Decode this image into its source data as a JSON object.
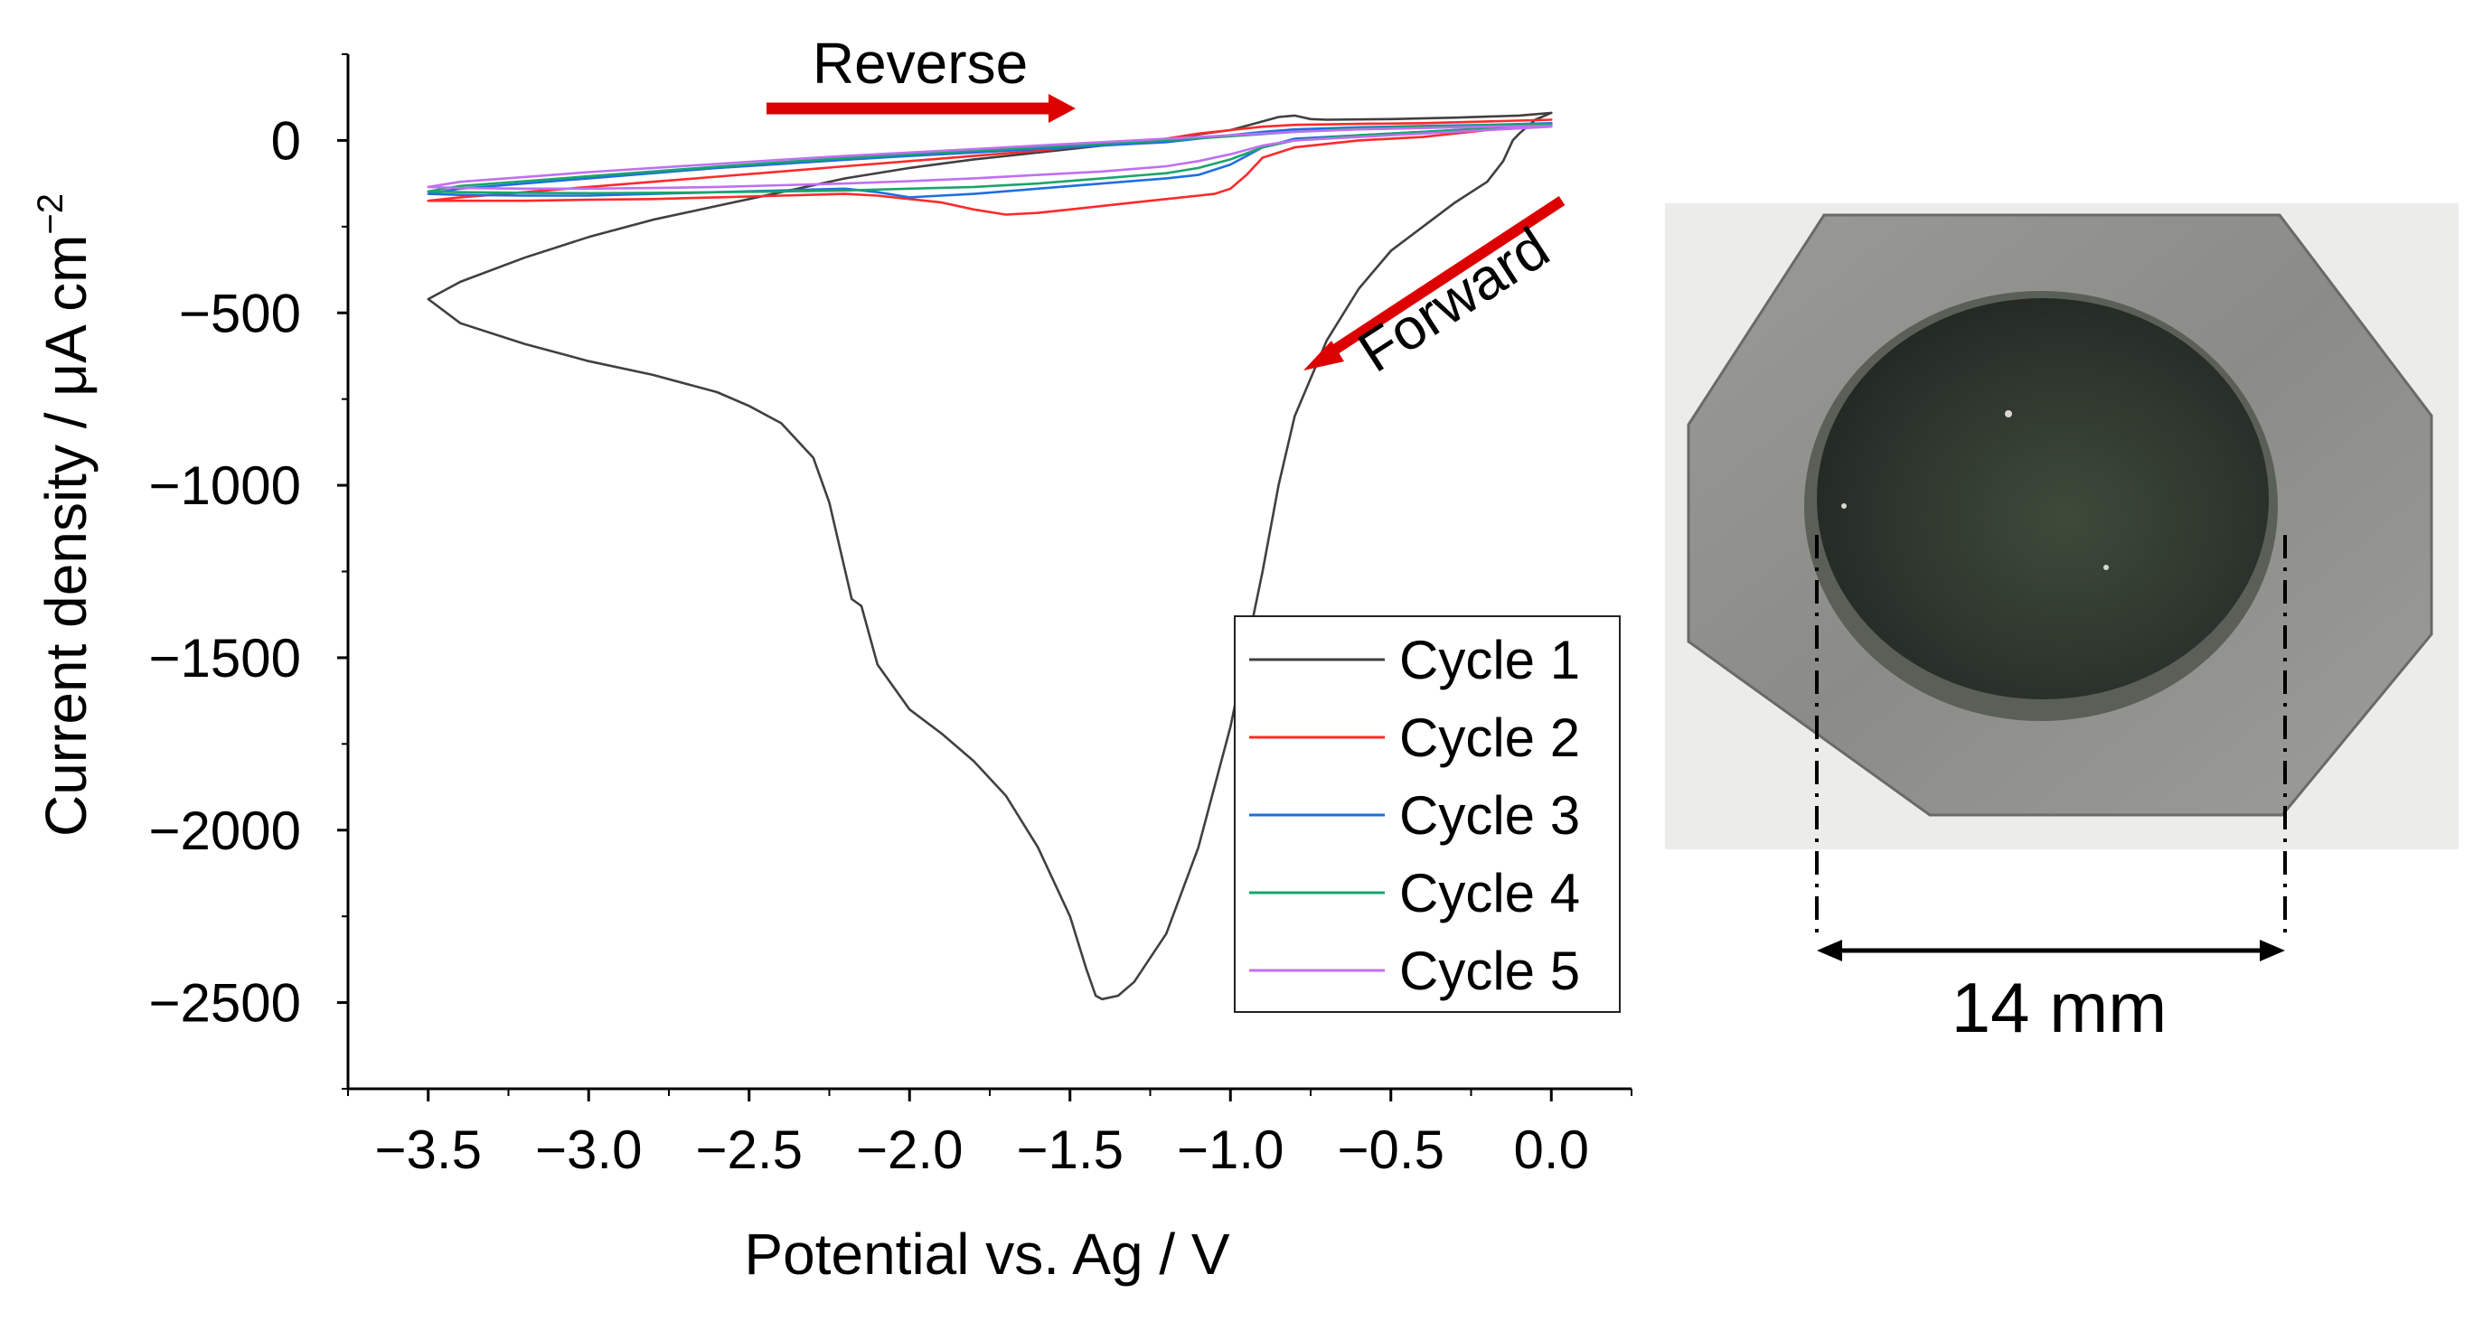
{
  "colors": {
    "cycle1": "#404040",
    "cycle2": "#ff2a2a",
    "cycle3": "#1f6fe0",
    "cycle4": "#1aa56a",
    "cycle5": "#c070f0",
    "arrow": "#dd0000",
    "axis": "#000000"
  },
  "chart_data": {
    "type": "line",
    "title": "",
    "xlabel": "Potential vs. Ag / V",
    "ylabel": "Current density / μA cm",
    "ylabel_sup": "−2",
    "xlim": [
      -3.75,
      0.25
    ],
    "ylim": [
      -2750,
      250
    ],
    "xticks": [
      -3.5,
      -3.0,
      -2.5,
      -2.0,
      -1.5,
      -1.0,
      -0.5,
      0.0
    ],
    "xtick_labels": [
      "−3.5",
      "−3.0",
      "−2.5",
      "−2.0",
      "−1.5",
      "−1.0",
      "−0.5",
      "0.0"
    ],
    "yticks": [
      0,
      -500,
      -1000,
      -1500,
      -2000,
      -2500
    ],
    "ytick_labels": [
      "0",
      "−500",
      "−1000",
      "−1500",
      "−2000",
      "−2500"
    ],
    "legend_position": "bottom-right",
    "annotations": {
      "reverse": "Reverse",
      "forward": "Forward"
    },
    "series": [
      {
        "name": "Cycle 1",
        "color_key": "cycle1",
        "x": [
          0.0,
          -0.05,
          -0.1,
          -0.12,
          -0.15,
          -0.2,
          -0.3,
          -0.4,
          -0.5,
          -0.6,
          -0.7,
          -0.8,
          -0.85,
          -0.9,
          -1.0,
          -1.1,
          -1.2,
          -1.3,
          -1.35,
          -1.4,
          -1.42,
          -1.45,
          -1.5,
          -1.6,
          -1.7,
          -1.8,
          -1.9,
          -2.0,
          -2.1,
          -2.15,
          -2.18,
          -2.2,
          -2.25,
          -2.3,
          -2.4,
          -2.5,
          -2.6,
          -2.8,
          -3.0,
          -3.2,
          -3.4,
          -3.5,
          -3.4,
          -3.2,
          -3.0,
          -2.8,
          -2.6,
          -2.4,
          -2.2,
          -2.0,
          -1.8,
          -1.6,
          -1.4,
          -1.2,
          -1.0,
          -0.9,
          -0.85,
          -0.8,
          -0.75,
          -0.7,
          -0.5,
          -0.3,
          -0.1,
          0.0
        ],
        "y": [
          80,
          60,
          20,
          0,
          -60,
          -120,
          -180,
          -250,
          -320,
          -430,
          -580,
          -800,
          -1000,
          -1250,
          -1700,
          -2050,
          -2300,
          -2440,
          -2480,
          -2490,
          -2480,
          -2400,
          -2250,
          -2050,
          -1900,
          -1800,
          -1720,
          -1650,
          -1520,
          -1350,
          -1330,
          -1250,
          -1050,
          -920,
          -820,
          -770,
          -730,
          -680,
          -640,
          -590,
          -530,
          -460,
          -410,
          -340,
          -280,
          -230,
          -190,
          -150,
          -110,
          -80,
          -55,
          -35,
          -15,
          5,
          30,
          55,
          68,
          72,
          62,
          60,
          62,
          66,
          72,
          80
        ]
      },
      {
        "name": "Cycle 2",
        "color_key": "cycle2",
        "x": [
          0.0,
          -0.2,
          -0.4,
          -0.6,
          -0.8,
          -0.9,
          -0.95,
          -1.0,
          -1.05,
          -1.1,
          -1.2,
          -1.3,
          -1.4,
          -1.5,
          -1.6,
          -1.7,
          -1.8,
          -1.9,
          -2.0,
          -2.1,
          -2.2,
          -2.4,
          -2.6,
          -2.8,
          -3.0,
          -3.2,
          -3.4,
          -3.5,
          -3.4,
          -3.2,
          -3.0,
          -2.8,
          -2.6,
          -2.4,
          -2.2,
          -2.0,
          -1.8,
          -1.6,
          -1.4,
          -1.2,
          -1.1,
          -1.0,
          -0.9,
          -0.8,
          -0.6,
          -0.4,
          -0.2,
          0.0
        ],
        "y": [
          50,
          30,
          10,
          0,
          -20,
          -50,
          -100,
          -140,
          -155,
          -160,
          -170,
          -180,
          -190,
          -200,
          -210,
          -215,
          -200,
          -180,
          -170,
          -160,
          -155,
          -160,
          -165,
          -170,
          -172,
          -175,
          -175,
          -175,
          -165,
          -150,
          -135,
          -120,
          -105,
          -90,
          -75,
          -60,
          -45,
          -30,
          -10,
          5,
          20,
          30,
          40,
          45,
          48,
          50,
          55,
          60
        ]
      },
      {
        "name": "Cycle 3",
        "color_key": "cycle3",
        "x": [
          0.0,
          -0.2,
          -0.4,
          -0.6,
          -0.8,
          -0.9,
          -1.0,
          -1.1,
          -1.2,
          -1.4,
          -1.6,
          -1.8,
          -2.0,
          -2.1,
          -2.2,
          -2.4,
          -2.6,
          -2.8,
          -3.0,
          -3.2,
          -3.4,
          -3.5,
          -3.4,
          -3.2,
          -3.0,
          -2.8,
          -2.6,
          -2.4,
          -2.2,
          -2.0,
          -1.8,
          -1.6,
          -1.4,
          -1.2,
          -1.1,
          -1.0,
          -0.9,
          -0.8,
          -0.6,
          -0.4,
          -0.2,
          0.0
        ],
        "y": [
          45,
          35,
          25,
          15,
          5,
          -20,
          -70,
          -100,
          -110,
          -125,
          -140,
          -155,
          -165,
          -150,
          -140,
          -145,
          -150,
          -155,
          -160,
          -160,
          -158,
          -155,
          -140,
          -125,
          -110,
          -95,
          -80,
          -68,
          -56,
          -45,
          -35,
          -25,
          -15,
          -5,
          5,
          15,
          25,
          32,
          38,
          42,
          45,
          50
        ]
      },
      {
        "name": "Cycle 4",
        "color_key": "cycle4",
        "x": [
          0.0,
          -0.2,
          -0.4,
          -0.6,
          -0.8,
          -0.9,
          -1.0,
          -1.1,
          -1.2,
          -1.4,
          -1.6,
          -1.8,
          -2.0,
          -2.2,
          -2.4,
          -2.6,
          -2.8,
          -3.0,
          -3.2,
          -3.4,
          -3.5,
          -3.4,
          -3.2,
          -3.0,
          -2.8,
          -2.6,
          -2.4,
          -2.2,
          -2.0,
          -1.8,
          -1.6,
          -1.4,
          -1.2,
          -1.0,
          -0.8,
          -0.6,
          -0.4,
          -0.2,
          0.0
        ],
        "y": [
          45,
          35,
          25,
          15,
          0,
          -20,
          -55,
          -80,
          -95,
          -110,
          -125,
          -135,
          -140,
          -145,
          -148,
          -150,
          -152,
          -153,
          -152,
          -150,
          -148,
          -132,
          -118,
          -104,
          -90,
          -76,
          -63,
          -51,
          -40,
          -30,
          -20,
          -10,
          0,
          12,
          25,
          35,
          40,
          44,
          48
        ]
      },
      {
        "name": "Cycle 5",
        "color_key": "cycle5",
        "x": [
          0.0,
          -0.2,
          -0.4,
          -0.6,
          -0.8,
          -0.9,
          -1.0,
          -1.1,
          -1.2,
          -1.4,
          -1.6,
          -1.8,
          -2.0,
          -2.2,
          -2.4,
          -2.6,
          -2.8,
          -3.0,
          -3.2,
          -3.4,
          -3.5,
          -3.4,
          -3.2,
          -3.0,
          -2.8,
          -2.6,
          -2.4,
          -2.2,
          -2.0,
          -1.8,
          -1.6,
          -1.4,
          -1.2,
          -1.0,
          -0.8,
          -0.6,
          -0.4,
          -0.2,
          0.0
        ],
        "y": [
          40,
          30,
          20,
          10,
          0,
          -15,
          -40,
          -60,
          -75,
          -90,
          -100,
          -110,
          -118,
          -125,
          -130,
          -135,
          -138,
          -140,
          -140,
          -138,
          -135,
          -120,
          -106,
          -92,
          -80,
          -68,
          -56,
          -45,
          -35,
          -25,
          -15,
          -5,
          5,
          15,
          25,
          32,
          36,
          40,
          42
        ]
      }
    ]
  },
  "photo": {
    "dimension_label": "14 mm",
    "colors": {
      "background": "#ececea",
      "plate": "#8e8e8a",
      "plate_edge": "#6a6a66",
      "deposit": "#2c332c",
      "deposit_center": "#3f4a3a",
      "dim_line": "#000000"
    }
  }
}
